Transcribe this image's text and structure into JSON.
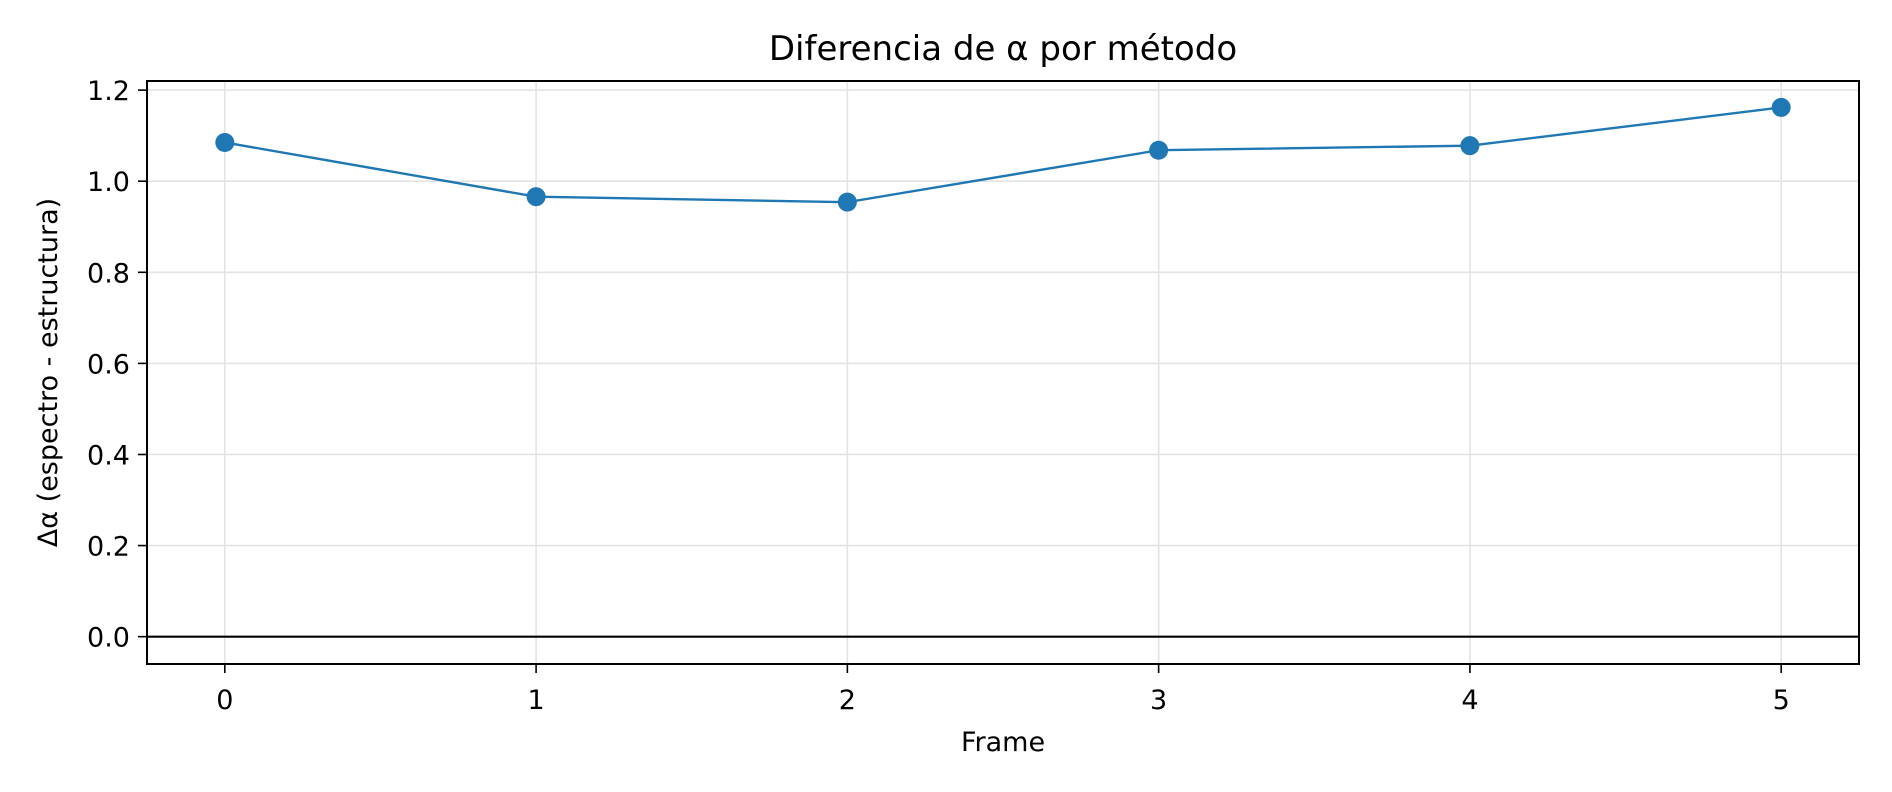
{
  "chart_data": {
    "type": "line",
    "title": "Diferencia de α por método",
    "xlabel": "Frame",
    "ylabel": "Δα (espectro - estructura)",
    "x": [
      0,
      1,
      2,
      3,
      4,
      5
    ],
    "x_ticks": [
      "0",
      "1",
      "2",
      "3",
      "4",
      "5"
    ],
    "y_ticks": [
      "0.0",
      "0.2",
      "0.4",
      "0.6",
      "0.8",
      "1.0",
      "1.2"
    ],
    "xlim": [
      -0.25,
      5.25
    ],
    "ylim": [
      -0.06,
      1.22
    ],
    "series": [
      {
        "values": [
          1.085,
          0.966,
          0.954,
          1.068,
          1.078,
          1.162
        ],
        "color": "#1f77b4"
      }
    ],
    "reference_line": {
      "y": 0.0,
      "color": "#000000"
    },
    "grid": true,
    "marker": "circle"
  }
}
